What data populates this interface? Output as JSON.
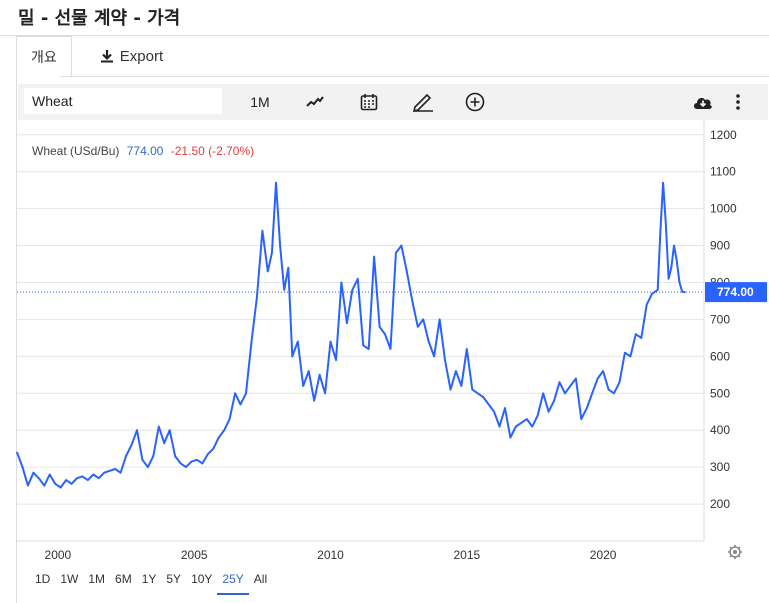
{
  "page": {
    "title": "밀 - 선물 계약 - 가격"
  },
  "tabs": {
    "overview": "개요",
    "export": "Export"
  },
  "toolbar": {
    "search_value": "Wheat",
    "interval": "1M",
    "icons": [
      "line-chart-icon",
      "calendar-icon",
      "pencil-icon",
      "plus-circle-icon",
      "cloud-download-icon",
      "more-vertical-icon"
    ]
  },
  "legend": {
    "name": "Wheat (USd/Bu)",
    "value": "774.00",
    "change": "-21.50 (-2.70%)",
    "change_color": "#e04040",
    "value_color": "#3366cc"
  },
  "ranges": [
    "1D",
    "1W",
    "1M",
    "6M",
    "1Y",
    "5Y",
    "10Y",
    "25Y",
    "All"
  ],
  "active_range": "25Y",
  "chart_data": {
    "type": "line",
    "x_ticks": [
      "2000",
      "2005",
      "2010",
      "2015",
      "2020"
    ],
    "y_ticks": [
      "200",
      "300",
      "400",
      "500",
      "600",
      "700",
      "800",
      "900",
      "1000",
      "1100",
      "1200"
    ],
    "xlim": [
      1998.5,
      2023.7
    ],
    "ylim": [
      100,
      1240
    ],
    "last_value_label": "774.00",
    "last_value": 774,
    "line_color": "#2962ff",
    "grid": true,
    "series": [
      {
        "x": [
          1998.5,
          1998.7,
          1998.9,
          1999.1,
          1999.3,
          1999.5,
          1999.7,
          1999.9,
          2000.1,
          2000.3,
          2000.5,
          2000.7,
          2000.9,
          2001.1,
          2001.3,
          2001.5,
          2001.7,
          2001.9,
          2002.1,
          2002.3,
          2002.5,
          2002.7,
          2002.9,
          2003.1,
          2003.3,
          2003.5,
          2003.7,
          2003.9,
          2004.1,
          2004.3,
          2004.5,
          2004.7,
          2004.9,
          2005.1,
          2005.3,
          2005.5,
          2005.7,
          2005.9,
          2006.1,
          2006.3,
          2006.5,
          2006.7,
          2006.9,
          2007.1,
          2007.3,
          2007.5,
          2007.7,
          2007.85,
          2008.0,
          2008.15,
          2008.3,
          2008.45,
          2008.6,
          2008.8,
          2009.0,
          2009.2,
          2009.4,
          2009.6,
          2009.8,
          2010.0,
          2010.2,
          2010.4,
          2010.6,
          2010.8,
          2011.0,
          2011.2,
          2011.4,
          2011.6,
          2011.8,
          2012.0,
          2012.2,
          2012.4,
          2012.6,
          2012.8,
          2013.0,
          2013.2,
          2013.4,
          2013.6,
          2013.8,
          2014.0,
          2014.2,
          2014.4,
          2014.6,
          2014.8,
          2015.0,
          2015.2,
          2015.4,
          2015.6,
          2015.8,
          2016.0,
          2016.2,
          2016.4,
          2016.6,
          2016.8,
          2017.0,
          2017.2,
          2017.4,
          2017.6,
          2017.8,
          2018.0,
          2018.2,
          2018.4,
          2018.6,
          2018.8,
          2019.0,
          2019.2,
          2019.4,
          2019.6,
          2019.8,
          2020.0,
          2020.2,
          2020.4,
          2020.6,
          2020.8,
          2021.0,
          2021.2,
          2021.4,
          2021.6,
          2021.8,
          2022.0,
          2022.1,
          2022.2,
          2022.3,
          2022.4,
          2022.5,
          2022.6,
          2022.7,
          2022.8,
          2022.9,
          2023.0
        ],
        "y": [
          340,
          300,
          250,
          285,
          270,
          250,
          280,
          255,
          245,
          265,
          255,
          270,
          275,
          265,
          280,
          270,
          285,
          290,
          295,
          285,
          330,
          360,
          400,
          320,
          300,
          330,
          410,
          365,
          400,
          330,
          310,
          300,
          315,
          320,
          310,
          335,
          350,
          380,
          400,
          430,
          500,
          470,
          500,
          640,
          760,
          940,
          830,
          880,
          1070,
          900,
          780,
          840,
          600,
          640,
          520,
          560,
          480,
          550,
          500,
          640,
          590,
          800,
          690,
          780,
          810,
          630,
          620,
          870,
          680,
          660,
          620,
          880,
          900,
          830,
          750,
          680,
          700,
          640,
          600,
          700,
          590,
          510,
          560,
          520,
          620,
          510,
          500,
          490,
          470,
          450,
          410,
          460,
          380,
          410,
          420,
          430,
          410,
          440,
          500,
          450,
          480,
          530,
          500,
          520,
          540,
          430,
          460,
          500,
          540,
          560,
          510,
          500,
          530,
          610,
          600,
          660,
          650,
          740,
          770,
          780,
          940,
          1070,
          960,
          810,
          840,
          900,
          860,
          800,
          775,
          774
        ]
      }
    ]
  }
}
